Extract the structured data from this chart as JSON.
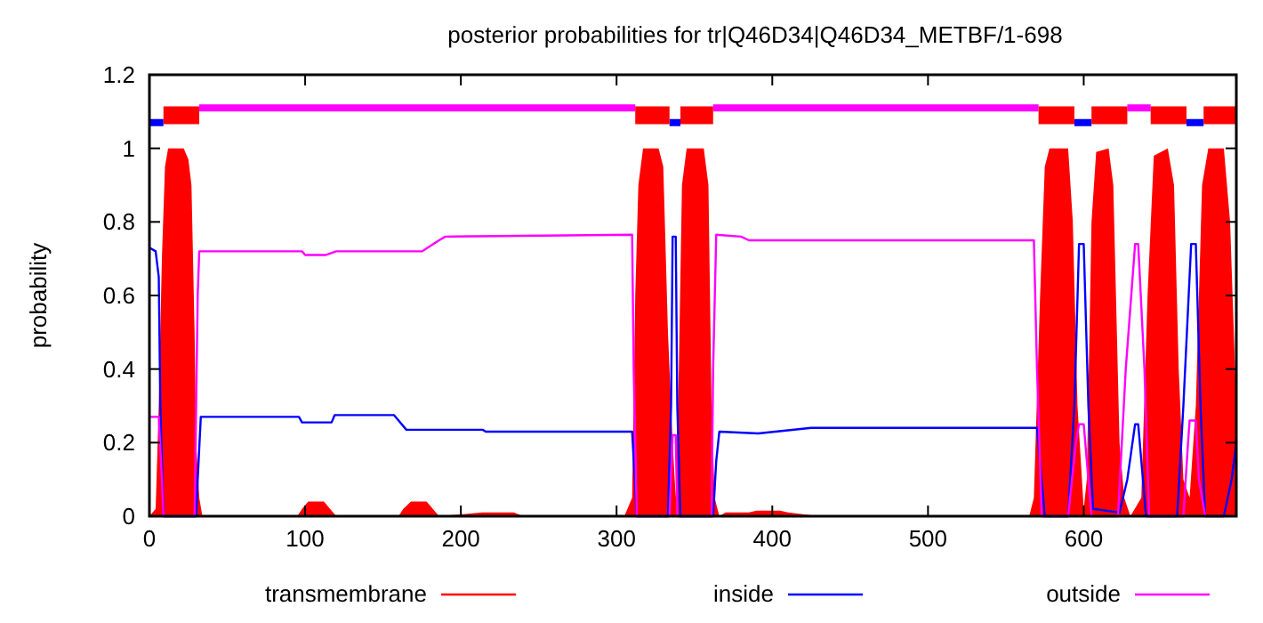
{
  "chart_data": {
    "type": "line",
    "title": "posterior probabilities for tr|Q46D34|Q46D34_METBF/1-698",
    "ylabel": "probability",
    "xlim": [
      0,
      698
    ],
    "xticks": [
      0,
      100,
      200,
      300,
      400,
      500,
      600
    ],
    "ylim": [
      0,
      1.2
    ],
    "yticks": [
      0,
      0.2,
      0.4,
      0.6,
      0.8,
      1,
      1.2
    ],
    "legend": "bottom",
    "series": [
      {
        "name": "transmembrane",
        "type": "area",
        "color": "#ff0000",
        "x": [
          0,
          4,
          6,
          8,
          10,
          12,
          22,
          25,
          27,
          29,
          30,
          32,
          34,
          95,
          98,
          102,
          112,
          116,
          120,
          160,
          163,
          168,
          178,
          182,
          186,
          200,
          214,
          234,
          240,
          280,
          305,
          310,
          312,
          314,
          317,
          327,
          330,
          333,
          336,
          338,
          340,
          342,
          345,
          356,
          359,
          361,
          363,
          366,
          370,
          385,
          390,
          405,
          410,
          430,
          565,
          568,
          572,
          575,
          578,
          590,
          593,
          596,
          600,
          602,
          605,
          608,
          616,
          619,
          623,
          626,
          630,
          637,
          641,
          645,
          654,
          658,
          661,
          664,
          668,
          672,
          676,
          680,
          690,
          694,
          698
        ],
        "values": [
          0,
          0.02,
          0.3,
          0.7,
          0.95,
          1,
          1,
          0.97,
          0.9,
          0.5,
          0.2,
          0.05,
          0,
          0,
          0.02,
          0.04,
          0.04,
          0.02,
          0,
          0,
          0.02,
          0.04,
          0.04,
          0.02,
          0,
          0.005,
          0.01,
          0.01,
          0,
          0,
          0,
          0.05,
          0.6,
          0.9,
          1,
          1,
          0.95,
          0.5,
          0.2,
          0.05,
          0.4,
          0.9,
          1,
          1,
          0.9,
          0.3,
          0.05,
          0,
          0.01,
          0.01,
          0.015,
          0.015,
          0.01,
          0,
          0,
          0.05,
          0.6,
          0.95,
          1,
          1,
          0.8,
          0.3,
          0.02,
          0.1,
          0.8,
          0.99,
          1,
          0.9,
          0.2,
          0.05,
          0,
          0.05,
          0.6,
          0.98,
          1,
          0.9,
          0.4,
          0.1,
          0.05,
          0.3,
          0.9,
          1,
          1,
          0.8,
          0.3
        ]
      },
      {
        "name": "inside",
        "color": "#0000ff",
        "x": [
          0,
          4,
          6,
          7,
          9,
          30,
          31,
          33,
          96,
          98,
          117,
          119,
          157,
          165,
          214,
          216,
          310,
          313,
          333,
          335,
          336,
          338,
          339,
          341,
          362,
          364,
          366,
          391,
          425,
          570,
          575,
          590,
          594,
          597,
          600,
          603,
          606,
          623,
          628,
          633,
          635,
          638,
          640,
          660,
          664,
          669,
          672,
          675,
          678,
          690,
          695,
          698
        ],
        "values": [
          0.73,
          0.72,
          0.65,
          0.3,
          0,
          0,
          0.1,
          0.27,
          0.27,
          0.255,
          0.255,
          0.275,
          0.275,
          0.235,
          0.235,
          0.23,
          0.23,
          0,
          0,
          0.3,
          0.76,
          0.76,
          0.3,
          0,
          0,
          0.15,
          0.23,
          0.225,
          0.24,
          0.24,
          0,
          0,
          0.3,
          0.74,
          0.74,
          0.3,
          0.02,
          0.01,
          0.1,
          0.25,
          0.25,
          0.1,
          0,
          0,
          0.3,
          0.74,
          0.74,
          0.3,
          0,
          0,
          0.1,
          0.2
        ]
      },
      {
        "name": "outside",
        "color": "#ff00ff",
        "x": [
          0,
          6,
          8,
          9,
          29,
          30,
          31,
          32,
          98,
          100,
          113,
          120,
          175,
          186,
          190,
          310,
          311,
          313,
          334,
          336,
          338,
          339,
          361,
          362,
          364,
          380,
          385,
          568,
          570,
          573,
          590,
          595,
          597,
          600,
          603,
          605,
          622,
          627,
          633,
          635,
          639,
          642,
          664,
          667,
          668,
          672,
          674,
          678
        ],
        "values": [
          0.27,
          0.27,
          0.1,
          0,
          0,
          0.3,
          0.6,
          0.72,
          0.72,
          0.71,
          0.71,
          0.72,
          0.72,
          0.75,
          0.76,
          0.765,
          0.4,
          0,
          0,
          0.22,
          0.22,
          0,
          0,
          0.4,
          0.765,
          0.76,
          0.75,
          0.75,
          0.4,
          0,
          0,
          0.2,
          0.25,
          0.25,
          0.1,
          0,
          0,
          0.4,
          0.74,
          0.74,
          0.4,
          0,
          0,
          0.2,
          0.26,
          0.26,
          0.1,
          0
        ]
      },
      {
        "type": "step",
        "color": "#0000ff",
        "x": [
          0,
          9,
          20,
          334,
          341,
          350,
          594,
          605,
          615,
          666,
          677
        ],
        "values": [
          1.07,
          1.07,
          null,
          1.07,
          1.07,
          null,
          1.07,
          1.07,
          null,
          1.07,
          1.07
        ]
      },
      {
        "type": "step",
        "color": "#ff00ff",
        "x": [
          32,
          312,
          320,
          362,
          571,
          580,
          628,
          643
        ],
        "values": [
          1.11,
          1.11,
          null,
          1.11,
          1.11,
          null,
          1.11,
          1.11
        ]
      },
      {
        "type": "line",
        "color": "#ff0000",
        "x": [
          9,
          32,
          33,
          312,
          334,
          335,
          341,
          362,
          363,
          571,
          594,
          595,
          605,
          628,
          629,
          643,
          666,
          667,
          677,
          698
        ],
        "values": [
          1.09,
          1.09,
          null,
          1.09,
          1.09,
          null,
          1.09,
          1.09,
          null,
          1.09,
          1.09,
          null,
          1.09,
          1.09,
          null,
          1.09,
          1.09,
          null,
          1.09,
          1.09
        ]
      }
    ]
  }
}
